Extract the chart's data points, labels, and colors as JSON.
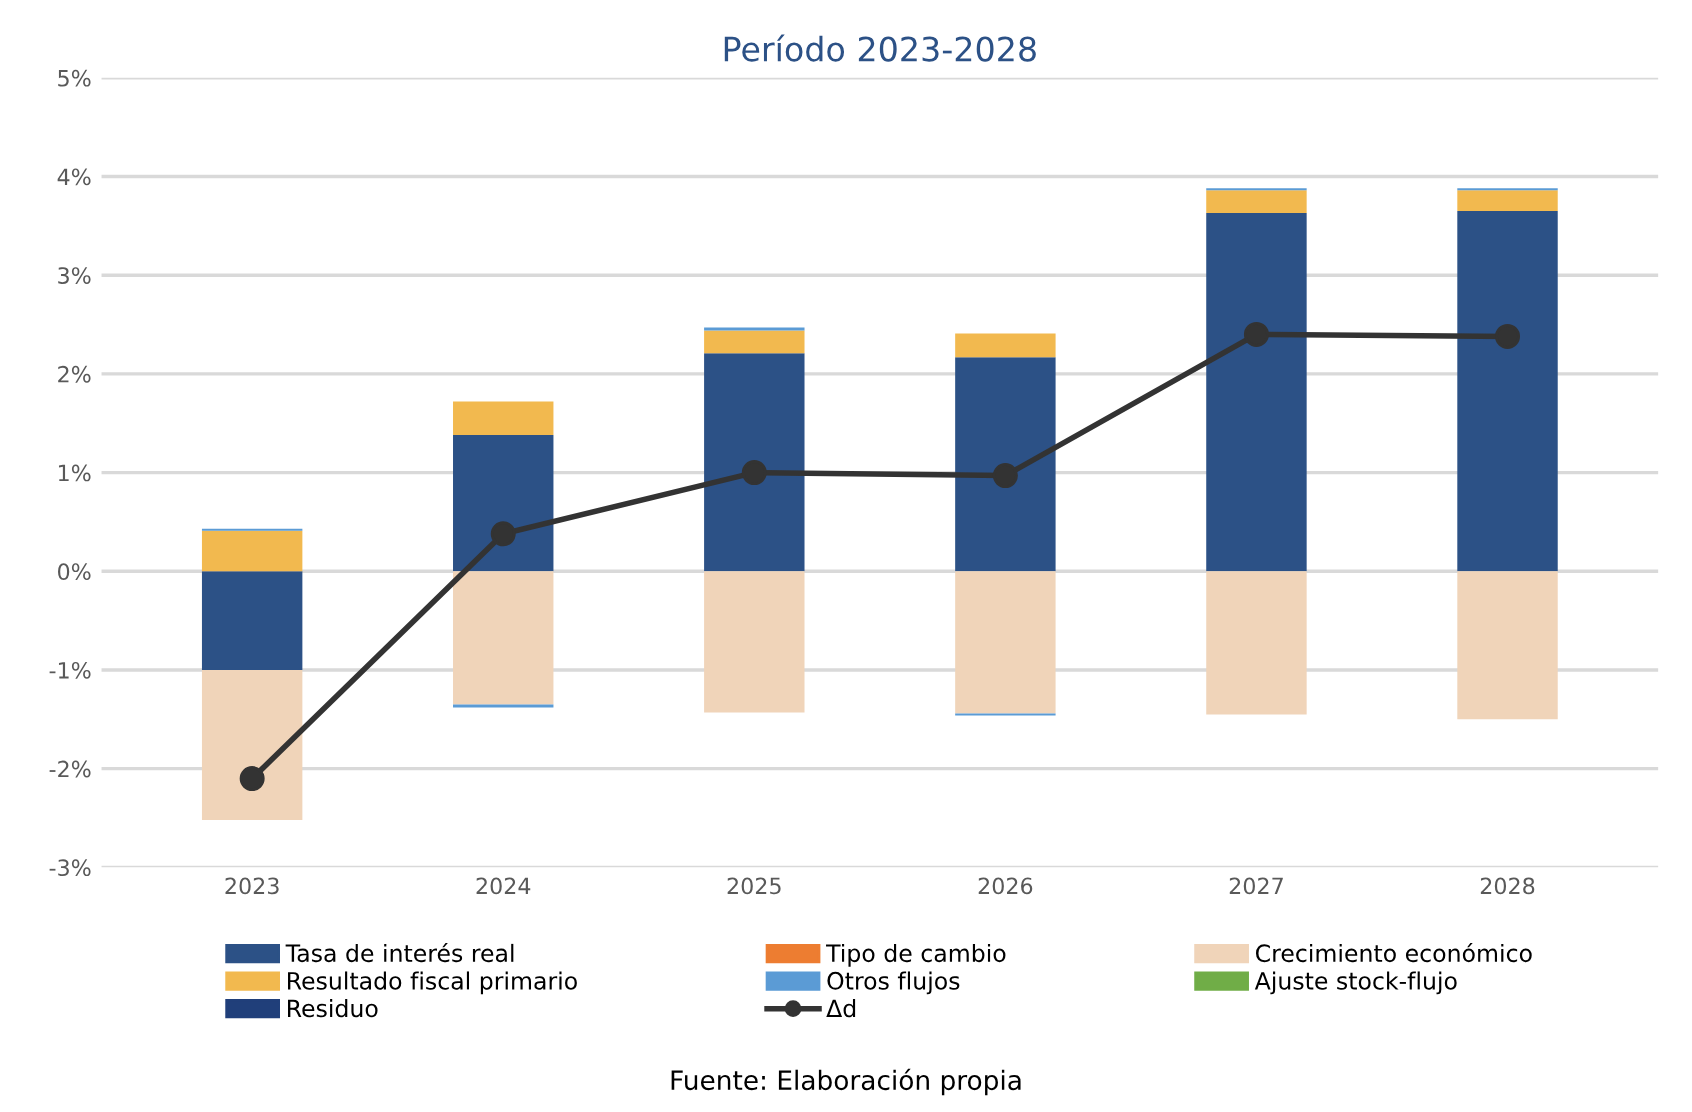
{
  "chart_data": {
    "type": "bar",
    "stacked": true,
    "title": "Período 2023-2028",
    "categories": [
      "2023",
      "2024",
      "2025",
      "2026",
      "2027",
      "2028"
    ],
    "series": [
      {
        "name": "Tasa de interés real",
        "color": "#2c5186",
        "values": [
          -1.0,
          1.38,
          2.21,
          2.17,
          3.63,
          3.65
        ]
      },
      {
        "name": "Tipo de cambio",
        "color": "#ed7d31",
        "values": [
          0,
          0,
          0,
          0,
          0,
          0
        ]
      },
      {
        "name": "Crecimiento económico",
        "color": "#f0d4b9",
        "values": [
          -1.52,
          -1.35,
          -1.43,
          -1.44,
          -1.45,
          -1.5
        ]
      },
      {
        "name": "Resultado fiscal primario",
        "color": "#f2b94f",
        "values": [
          0.41,
          0.34,
          0.23,
          0.24,
          0.23,
          0.21
        ]
      },
      {
        "name": "Otros flujos",
        "color": "#5b9bd5",
        "values": [
          0.02,
          -0.03,
          0.03,
          -0.02,
          0.02,
          0.02
        ]
      },
      {
        "name": "Ajuste stock-flujo",
        "color": "#70ad47",
        "values": [
          0,
          0,
          0,
          0,
          0,
          0
        ]
      },
      {
        "name": "Residuo",
        "color": "#203f7a",
        "values": [
          0,
          0,
          0,
          0,
          0,
          0
        ]
      },
      {
        "name": "Δd",
        "type": "line",
        "color": "#333333",
        "marker": "circle",
        "values": [
          -2.1,
          0.38,
          1.0,
          0.97,
          2.4,
          2.38
        ]
      }
    ],
    "ylim": [
      -3,
      5
    ],
    "yticks": [
      {
        "value": -3,
        "label": "-3%"
      },
      {
        "value": -2,
        "label": "-2%"
      },
      {
        "value": -1,
        "label": "-1%"
      },
      {
        "value": 0,
        "label": "0%"
      },
      {
        "value": 1,
        "label": "1%"
      },
      {
        "value": 2,
        "label": "2%"
      },
      {
        "value": 3,
        "label": "3%"
      },
      {
        "value": 4,
        "label": "4%"
      },
      {
        "value": 5,
        "label": "5%"
      }
    ],
    "grid": "y",
    "legend": "bottom",
    "annotations": [
      "Fuente: Elaboración propia"
    ]
  }
}
